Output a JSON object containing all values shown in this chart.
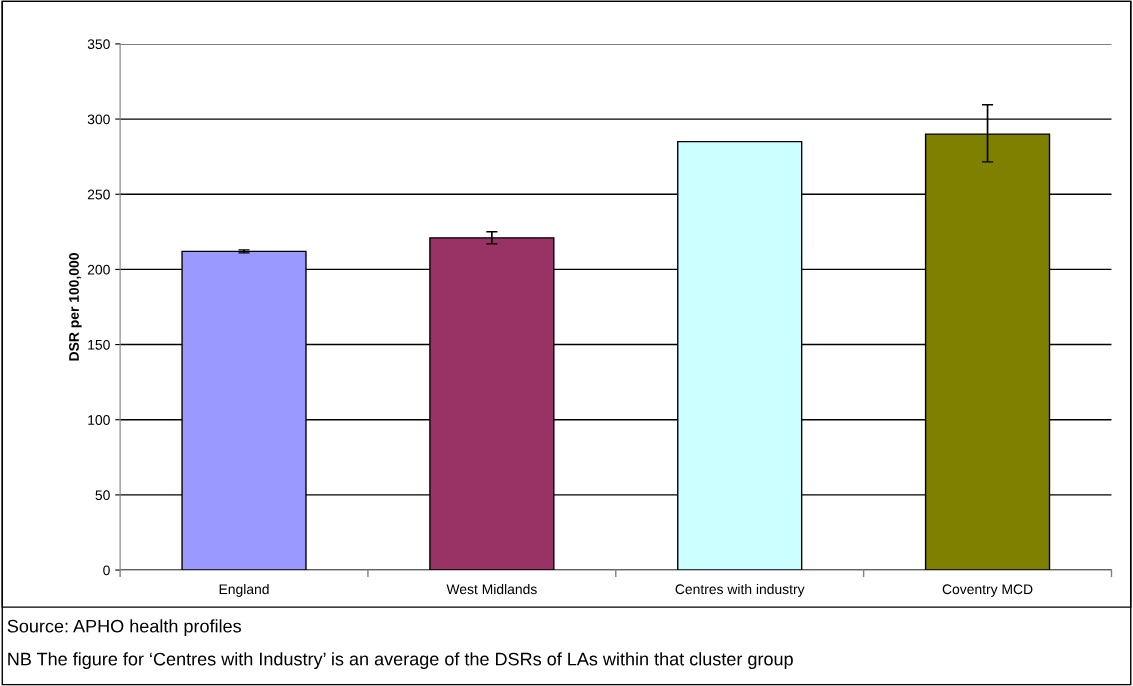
{
  "chart_data": {
    "type": "bar",
    "ylabel": "DSR per 100,000",
    "categories": [
      "England",
      "West Midlands",
      "Centres with industry",
      "Coventry MCD"
    ],
    "values": [
      212,
      221,
      285,
      290
    ],
    "colors": [
      "#9999ff",
      "#993366",
      "#ccffff",
      "#808000"
    ],
    "errors": [
      [
        211,
        213
      ],
      [
        217,
        225
      ],
      null,
      [
        271.5,
        309.5
      ]
    ],
    "ylim": [
      0,
      350
    ],
    "yticks": [
      0,
      50,
      100,
      150,
      200,
      250,
      300,
      350
    ],
    "grid": "y",
    "annotations": [
      "Source: APHO health profiles",
      "NB The figure for ‘Centres with Industry’ is an average of the DSRs of LAs within that cluster group"
    ]
  }
}
